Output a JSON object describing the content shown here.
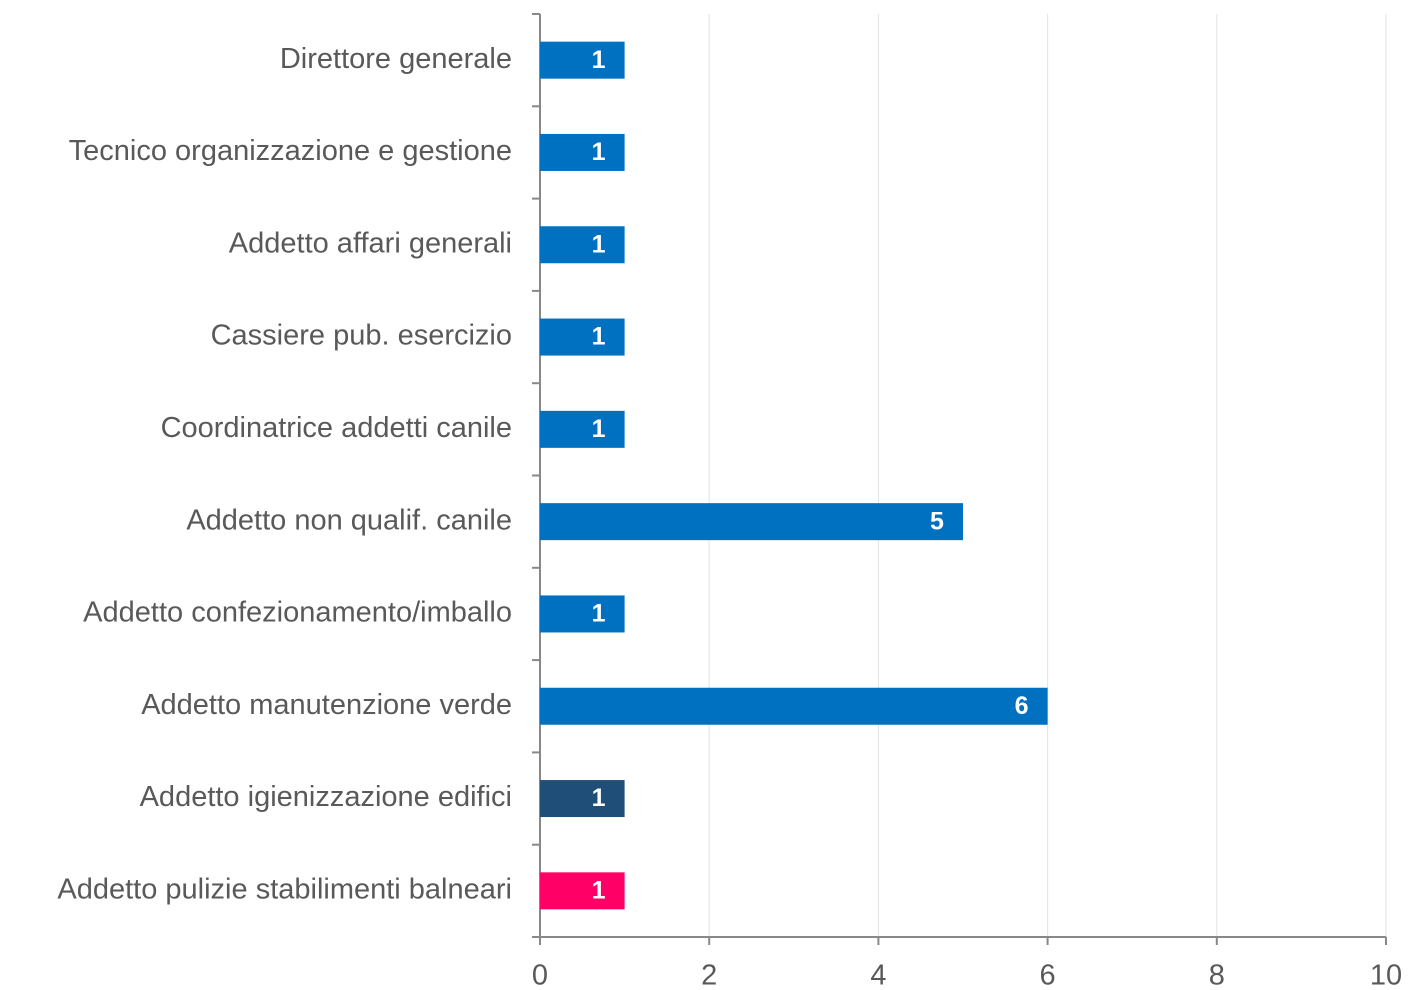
{
  "chart_data": {
    "type": "barh",
    "categories": [
      "Direttore generale",
      "Tecnico organizzazione e gestione",
      "Addetto affari generali",
      "Cassiere pub. esercizio",
      "Coordinatrice addetti canile",
      "Addetto non qualif. canile",
      "Addetto confezionamento/imballo",
      "Addetto manutenzione verde",
      "Addetto igienizzazione edifici",
      "Addetto pulizie stabilimenti balneari"
    ],
    "values": [
      1,
      1,
      1,
      1,
      1,
      5,
      1,
      6,
      1,
      1
    ],
    "colors": [
      "#0070c0",
      "#0070c0",
      "#0070c0",
      "#0070c0",
      "#0070c0",
      "#0070c0",
      "#0070c0",
      "#0070c0",
      "#1f4e79",
      "#ff0066"
    ],
    "xlim": [
      0,
      10
    ],
    "xticks": [
      0,
      2,
      4,
      6,
      8,
      10
    ],
    "grid": true
  }
}
